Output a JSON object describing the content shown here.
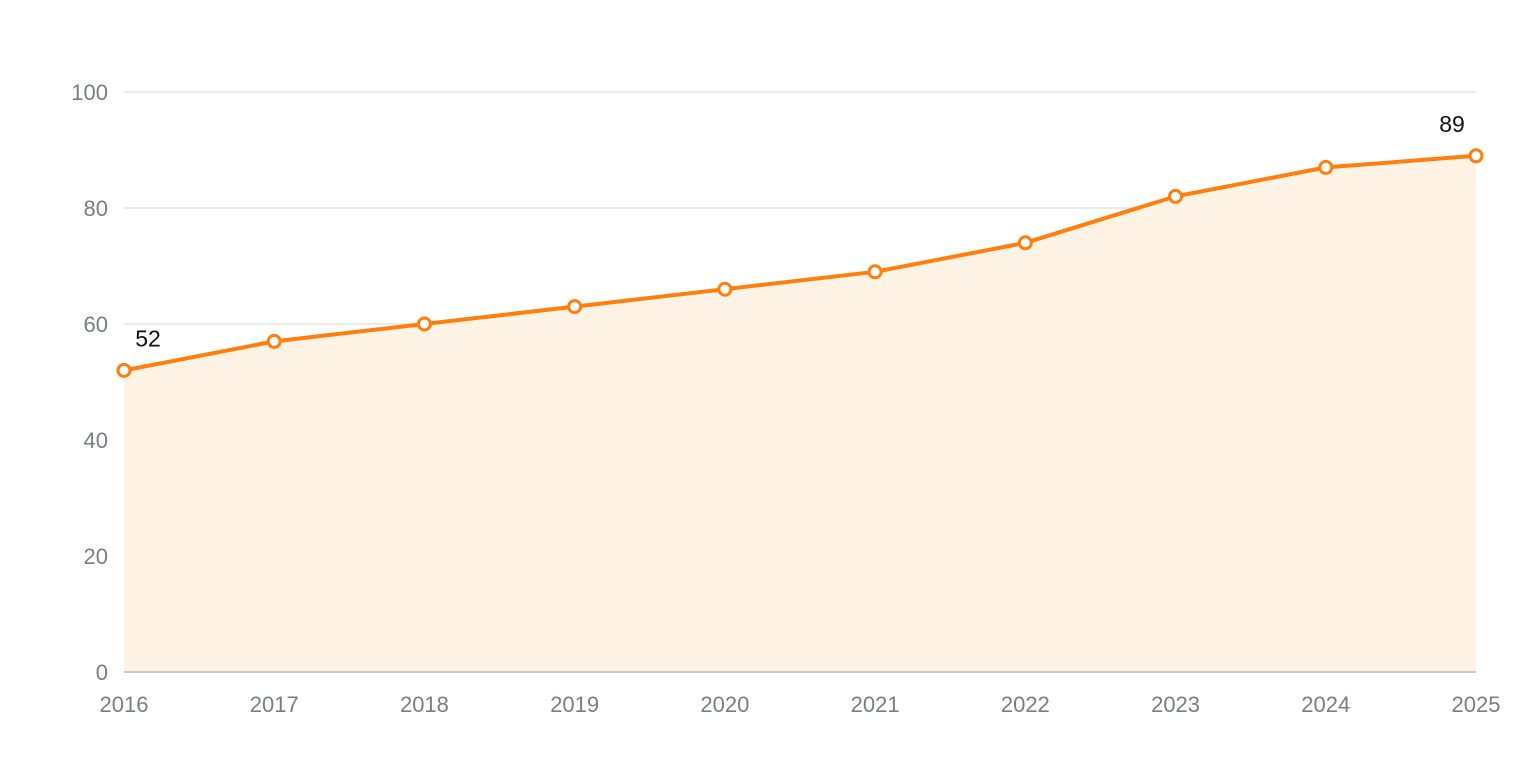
{
  "chart_data": {
    "type": "area",
    "title": "",
    "xlabel": "",
    "ylabel": "",
    "categories": [
      "2016",
      "2017",
      "2018",
      "2019",
      "2020",
      "2021",
      "2022",
      "2023",
      "2024",
      "2025"
    ],
    "series": [
      {
        "values": [
          52,
          57,
          60,
          63,
          66,
          69,
          74,
          82,
          87,
          89
        ]
      }
    ],
    "data_labels": [
      {
        "index": 0,
        "text": "52"
      },
      {
        "index": 9,
        "text": "89"
      }
    ],
    "ylim": [
      0,
      100
    ],
    "yticks": [
      "0",
      "20",
      "40",
      "60",
      "80",
      "100"
    ],
    "grid": true,
    "legend": "none",
    "colors": {
      "line": "#ff7f0e",
      "fill": "#fff3e6",
      "marker_fill": "#ffffff"
    }
  }
}
